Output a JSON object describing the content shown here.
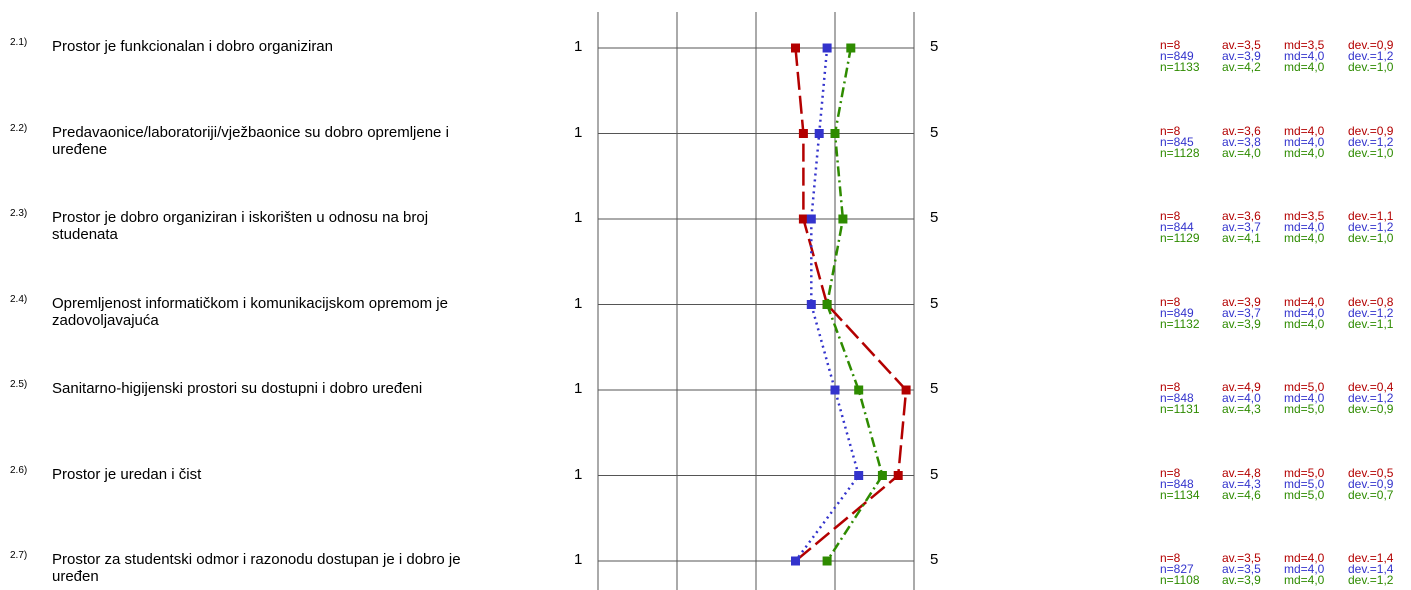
{
  "chart_data": {
    "type": "line",
    "scale": {
      "min_label": "1",
      "max_label": "5",
      "min": 1,
      "max": 5
    },
    "colors": [
      "#b30000",
      "#3333cc",
      "#2e8b00"
    ],
    "series": [
      {
        "values": [
          3.5,
          3.6,
          3.6,
          3.9,
          4.9,
          4.8,
          3.5
        ]
      },
      {
        "values": [
          3.9,
          3.8,
          3.7,
          3.7,
          4.0,
          4.3,
          3.5
        ]
      },
      {
        "values": [
          4.2,
          4.0,
          4.1,
          3.9,
          4.3,
          4.6,
          3.9
        ]
      }
    ],
    "items": [
      {
        "num": "2.1)",
        "text": "Prostor je funkcionalan i dobro organiziran",
        "stats": [
          {
            "n": "n=8",
            "av": "av.=3,5",
            "md": "md=3,5",
            "dev": "dev.=0,9"
          },
          {
            "n": "n=849",
            "av": "av.=3,9",
            "md": "md=4,0",
            "dev": "dev.=1,2"
          },
          {
            "n": "n=1133",
            "av": "av.=4,2",
            "md": "md=4,0",
            "dev": "dev.=1,0"
          }
        ]
      },
      {
        "num": "2.2)",
        "text": "Predavaonice/laboratoriji/vježbaonice su dobro opremljene i uređene",
        "stats": [
          {
            "n": "n=8",
            "av": "av.=3,6",
            "md": "md=4,0",
            "dev": "dev.=0,9"
          },
          {
            "n": "n=845",
            "av": "av.=3,8",
            "md": "md=4,0",
            "dev": "dev.=1,2"
          },
          {
            "n": "n=1128",
            "av": "av.=4,0",
            "md": "md=4,0",
            "dev": "dev.=1,0"
          }
        ]
      },
      {
        "num": "2.3)",
        "text": "Prostor je dobro organiziran i iskorišten u odnosu na broj studenata",
        "stats": [
          {
            "n": "n=8",
            "av": "av.=3,6",
            "md": "md=3,5",
            "dev": "dev.=1,1"
          },
          {
            "n": "n=844",
            "av": "av.=3,7",
            "md": "md=4,0",
            "dev": "dev.=1,2"
          },
          {
            "n": "n=1129",
            "av": "av.=4,1",
            "md": "md=4,0",
            "dev": "dev.=1,0"
          }
        ]
      },
      {
        "num": "2.4)",
        "text": "Opremljenost informatičkom i komunikacijskom opremom je zadovoljavajuća",
        "stats": [
          {
            "n": "n=8",
            "av": "av.=3,9",
            "md": "md=4,0",
            "dev": "dev.=0,8"
          },
          {
            "n": "n=849",
            "av": "av.=3,7",
            "md": "md=4,0",
            "dev": "dev.=1,2"
          },
          {
            "n": "n=1132",
            "av": "av.=3,9",
            "md": "md=4,0",
            "dev": "dev.=1,1"
          }
        ]
      },
      {
        "num": "2.5)",
        "text": "Sanitarno-higijenski prostori su  dostupni i dobro uređeni",
        "stats": [
          {
            "n": "n=8",
            "av": "av.=4,9",
            "md": "md=5,0",
            "dev": "dev.=0,4"
          },
          {
            "n": "n=848",
            "av": "av.=4,0",
            "md": "md=4,0",
            "dev": "dev.=1,2"
          },
          {
            "n": "n=1131",
            "av": "av.=4,3",
            "md": "md=5,0",
            "dev": "dev.=0,9"
          }
        ]
      },
      {
        "num": "2.6)",
        "text": "Prostor je uredan i čist",
        "stats": [
          {
            "n": "n=8",
            "av": "av.=4,8",
            "md": "md=5,0",
            "dev": "dev.=0,5"
          },
          {
            "n": "n=848",
            "av": "av.=4,3",
            "md": "md=5,0",
            "dev": "dev.=0,9"
          },
          {
            "n": "n=1134",
            "av": "av.=4,6",
            "md": "md=5,0",
            "dev": "dev.=0,7"
          }
        ]
      },
      {
        "num": "2.7)",
        "text": "Prostor za studentski odmor i razonodu dostupan je i dobro je uređen",
        "stats": [
          {
            "n": "n=8",
            "av": "av.=3,5",
            "md": "md=4,0",
            "dev": "dev.=1,4"
          },
          {
            "n": "n=827",
            "av": "av.=3,5",
            "md": "md=4,0",
            "dev": "dev.=1,4"
          },
          {
            "n": "n=1108",
            "av": "av.=3,9",
            "md": "md=4,0",
            "dev": "dev.=1,2"
          }
        ]
      }
    ]
  }
}
